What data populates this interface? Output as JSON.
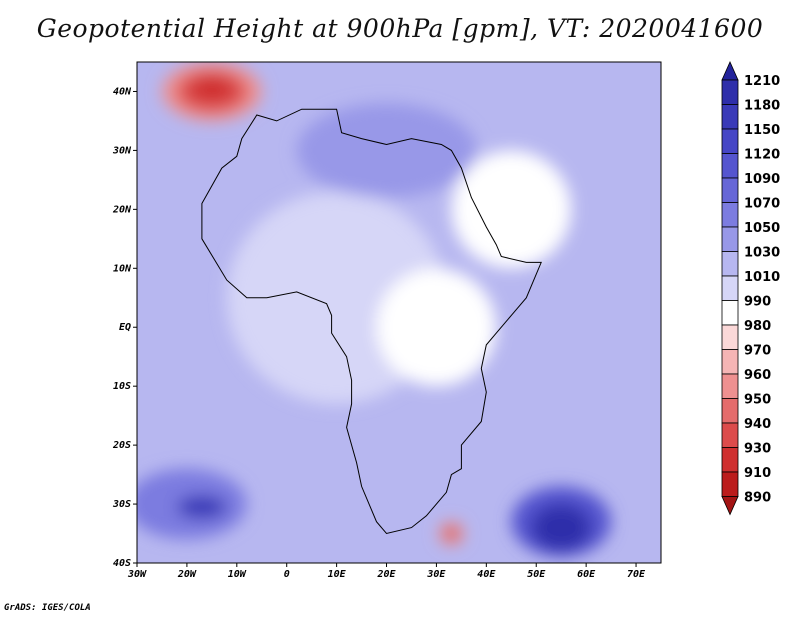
{
  "title": "Geopotential Height at 900hPa [gpm], VT: 2020041600",
  "credit": "GrADS: IGES/COLA",
  "map": {
    "lon_range": [
      -30,
      75
    ],
    "lat_range": [
      -40,
      45
    ],
    "x_ticks": [
      {
        "lon": -30,
        "label": "30W"
      },
      {
        "lon": -20,
        "label": "20W"
      },
      {
        "lon": -10,
        "label": "10W"
      },
      {
        "lon": 0,
        "label": "0"
      },
      {
        "lon": 10,
        "label": "10E"
      },
      {
        "lon": 20,
        "label": "20E"
      },
      {
        "lon": 30,
        "label": "30E"
      },
      {
        "lon": 40,
        "label": "40E"
      },
      {
        "lon": 50,
        "label": "50E"
      },
      {
        "lon": 60,
        "label": "60E"
      },
      {
        "lon": 70,
        "label": "70E"
      }
    ],
    "y_ticks": [
      {
        "lat": 40,
        "label": "40N"
      },
      {
        "lat": 30,
        "label": "30N"
      },
      {
        "lat": 20,
        "label": "20N"
      },
      {
        "lat": 10,
        "label": "10N"
      },
      {
        "lat": 0,
        "label": "EQ"
      },
      {
        "lat": -10,
        "label": "10S"
      },
      {
        "lat": -20,
        "label": "20S"
      },
      {
        "lat": -30,
        "label": "30S"
      },
      {
        "lat": -40,
        "label": "40S"
      }
    ]
  },
  "colorbar": {
    "labels": [
      "1210",
      "1180",
      "1150",
      "1120",
      "1090",
      "1070",
      "1050",
      "1030",
      "1010",
      "990",
      "980",
      "970",
      "960",
      "950",
      "940",
      "930",
      "910",
      "890"
    ],
    "colors": [
      "#23239b",
      "#2e2eaa",
      "#3a3ab8",
      "#4646c6",
      "#5555cf",
      "#6666d7",
      "#7c7ce0",
      "#9898e8",
      "#b7b7f0",
      "#d6d6f7",
      "#ffffff",
      "#fbd8d8",
      "#f5b5b5",
      "#ee9090",
      "#e56c6c",
      "#dc4b4b",
      "#cf2f2f",
      "#bb1c1c",
      "#a31414"
    ]
  },
  "field_blobs": [
    {
      "lon": -15,
      "lat": 40,
      "rx": 10,
      "ry": 5,
      "color": "#ee9090"
    },
    {
      "lon": -15,
      "lat": 40,
      "rx": 7,
      "ry": 3.5,
      "color": "#dc4b4b"
    },
    {
      "lon": -15,
      "lat": 40.5,
      "rx": 4,
      "ry": 2,
      "color": "#cf2f2f"
    },
    {
      "lon": 33,
      "lat": -35,
      "rx": 2.5,
      "ry": 2,
      "color": "#ee9090"
    },
    {
      "lon": 33,
      "lat": -35,
      "rx": 1.2,
      "ry": 1,
      "color": "#cf2f2f"
    },
    {
      "lon": -20,
      "lat": -30,
      "rx": 12,
      "ry": 6,
      "color": "#7c7ce0"
    },
    {
      "lon": -17,
      "lat": -30.5,
      "rx": 5,
      "ry": 2,
      "color": "#3a3ab8"
    },
    {
      "lon": 55,
      "lat": -33,
      "rx": 10,
      "ry": 6,
      "color": "#5555cf"
    },
    {
      "lon": 55,
      "lat": -34,
      "rx": 6,
      "ry": 4,
      "color": "#2e2eaa"
    },
    {
      "lon": 10,
      "lat": 5,
      "rx": 22,
      "ry": 18,
      "color": "#d6d6f7"
    },
    {
      "lon": 30,
      "lat": 0,
      "rx": 12,
      "ry": 10,
      "color": "#ffffff"
    },
    {
      "lon": 45,
      "lat": 20,
      "rx": 12,
      "ry": 10,
      "color": "#ffffff"
    },
    {
      "lon": 20,
      "lat": 30,
      "rx": 18,
      "ry": 8,
      "color": "#9898e8"
    }
  ],
  "coast_outline": [
    [
      -17,
      21
    ],
    [
      -17,
      15
    ],
    [
      -12,
      8
    ],
    [
      -8,
      5
    ],
    [
      -4,
      5
    ],
    [
      2,
      6
    ],
    [
      8,
      4
    ],
    [
      9,
      2
    ],
    [
      9,
      -1
    ],
    [
      12,
      -5
    ],
    [
      13,
      -9
    ],
    [
      13,
      -13
    ],
    [
      12,
      -17
    ],
    [
      14,
      -23
    ],
    [
      15,
      -27
    ],
    [
      18,
      -33
    ],
    [
      20,
      -35
    ],
    [
      25,
      -34
    ],
    [
      28,
      -32
    ],
    [
      32,
      -28
    ],
    [
      33,
      -25
    ],
    [
      35,
      -24
    ],
    [
      35,
      -20
    ],
    [
      39,
      -16
    ],
    [
      40,
      -11
    ],
    [
      39,
      -7
    ],
    [
      40,
      -3
    ],
    [
      42,
      -1
    ],
    [
      45,
      2
    ],
    [
      48,
      5
    ],
    [
      51,
      11
    ],
    [
      48,
      11
    ],
    [
      43,
      12
    ],
    [
      42,
      14
    ],
    [
      40,
      17
    ],
    [
      37,
      22
    ],
    [
      35,
      27
    ],
    [
      33,
      30
    ],
    [
      31,
      31
    ],
    [
      25,
      32
    ],
    [
      20,
      31
    ],
    [
      15,
      32
    ],
    [
      11,
      33
    ],
    [
      10,
      37
    ],
    [
      3,
      37
    ],
    [
      -2,
      35
    ],
    [
      -6,
      36
    ],
    [
      -9,
      32
    ],
    [
      -10,
      29
    ],
    [
      -13,
      27
    ],
    [
      -17,
      21
    ]
  ]
}
